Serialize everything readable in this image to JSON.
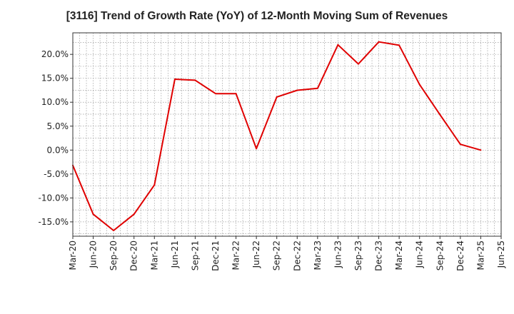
{
  "title": "[3116]  Trend of Growth Rate (YoY) of 12-Month Moving Sum of Revenues",
  "chart_data": {
    "type": "line",
    "title": "[3116]  Trend of Growth Rate (YoY) of 12-Month Moving Sum of Revenues",
    "xlabel": "",
    "ylabel": "",
    "x_tick_labels": [
      "Mar-20",
      "Jun-20",
      "Sep-20",
      "Dec-20",
      "Mar-21",
      "Jun-21",
      "Sep-21",
      "Dec-21",
      "Mar-22",
      "Jun-22",
      "Sep-22",
      "Dec-22",
      "Mar-23",
      "Jun-23",
      "Sep-23",
      "Dec-23",
      "Mar-24",
      "Jun-24",
      "Sep-24",
      "Dec-24",
      "Mar-25",
      "Jun-25"
    ],
    "y_ticks": [
      -15,
      -10,
      -5,
      0,
      5,
      10,
      15,
      20
    ],
    "y_tick_labels": [
      "-15.0%",
      "-10.0%",
      "-5.0%",
      "0.0%",
      "5.0%",
      "10.0%",
      "15.0%",
      "20.0%"
    ],
    "ylim": [
      -18,
      24.5
    ],
    "grid": true,
    "series": [
      {
        "color": "#e00000",
        "x": [
          "Mar-20",
          "Jun-20",
          "Sep-20",
          "Dec-20",
          "Mar-21",
          "Jun-21",
          "Sep-21",
          "Dec-21",
          "Mar-22",
          "Jun-22",
          "Sep-22",
          "Dec-22",
          "Mar-23",
          "Jun-23",
          "Sep-23",
          "Dec-23",
          "Mar-24",
          "Jun-24",
          "Sep-24",
          "Dec-24",
          "Mar-25"
        ],
        "values": [
          -3.2,
          -13.4,
          -16.8,
          -13.4,
          -7.3,
          14.8,
          14.6,
          11.8,
          11.8,
          0.3,
          11.1,
          12.5,
          12.9,
          22.0,
          18.0,
          22.6,
          21.9,
          13.7,
          7.4,
          1.2,
          0.0
        ]
      }
    ]
  }
}
